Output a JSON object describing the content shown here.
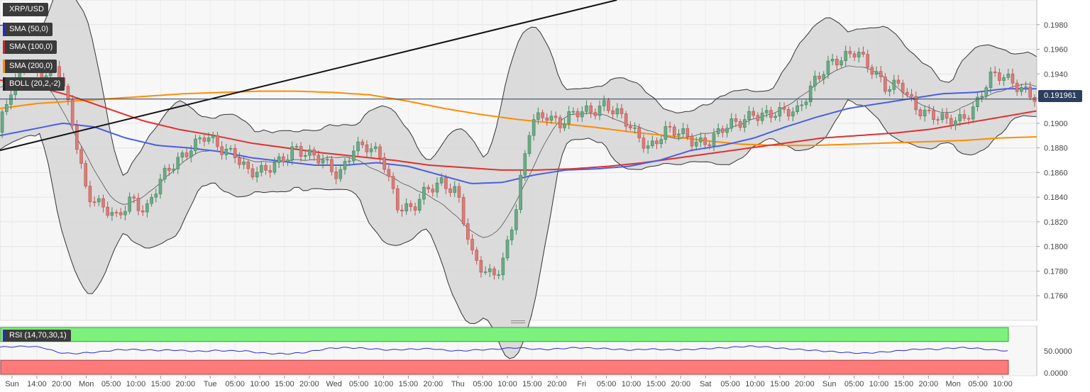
{
  "chart_data": {
    "type": "candlestick",
    "symbol": "XRP/USD",
    "last_price": "0.191961",
    "indicators": [
      {
        "label": "SMA (50,0)",
        "color": "#2a2ab8"
      },
      {
        "label": "SMA (100,0)",
        "color": "#c62828"
      },
      {
        "label": "SMA (200,0)",
        "color": "#ff8c00"
      },
      {
        "label": "BOLL (20,2,-2)",
        "color": "#222222"
      }
    ],
    "y_axis": {
      "min": 0.174,
      "max": 0.2,
      "ticks": [
        "0.1980",
        "0.1960",
        "0.1940",
        "0.1920",
        "0.1900",
        "0.1880",
        "0.1860",
        "0.1840",
        "0.1820",
        "0.1800",
        "0.1780",
        "0.1760"
      ]
    },
    "x_axis": {
      "ticks": [
        "Sun",
        "14:00",
        "20:00",
        "Mon",
        "05:00",
        "10:00",
        "15:00",
        "20:00",
        "Tue",
        "05:00",
        "10:00",
        "15:00",
        "20:00",
        "Wed",
        "05:00",
        "10:00",
        "15:00",
        "20:00",
        "Thu",
        "05:00",
        "10:00",
        "15:00",
        "20:00",
        "Fri",
        "05:00",
        "10:00",
        "15:00",
        "20:00",
        "Sat",
        "05:00",
        "10:00",
        "15:00",
        "20:00",
        "Sun",
        "05:00",
        "10:00",
        "15:00",
        "20:00",
        "Mon",
        "05:00",
        "10:00"
      ]
    },
    "price_anchors": [
      0.189,
      0.193,
      0.1955,
      0.1935,
      0.1945,
      0.1905,
      0.1845,
      0.183,
      0.1822,
      0.1842,
      0.1828,
      0.1852,
      0.187,
      0.1882,
      0.1888,
      0.1878,
      0.1878,
      0.186,
      0.1858,
      0.187,
      0.1882,
      0.1872,
      0.1868,
      0.186,
      0.188,
      0.1878,
      0.1872,
      0.1835,
      0.1828,
      0.1845,
      0.1855,
      0.1845,
      0.179,
      0.1778,
      0.1785,
      0.183,
      0.19,
      0.191,
      0.19,
      0.1906,
      0.191,
      0.1918,
      0.1905,
      0.189,
      0.1882,
      0.1895,
      0.189,
      0.1885,
      0.1888,
      0.1895,
      0.1898,
      0.191,
      0.1908,
      0.1906,
      0.191,
      0.1935,
      0.1945,
      0.195,
      0.1962,
      0.1945,
      0.1925,
      0.1932,
      0.1915,
      0.1905,
      0.19,
      0.1905,
      0.1915,
      0.1935,
      0.1938,
      0.1932,
      0.192
    ],
    "sma50_anchors": [
      0.189,
      0.1895,
      0.19,
      0.1897,
      0.1888,
      0.1882,
      0.188,
      0.1877,
      0.1872,
      0.1869,
      0.1866,
      0.1866,
      0.1868,
      0.1865,
      0.1858,
      0.1851,
      0.1852,
      0.1858,
      0.1862,
      0.1863,
      0.1865,
      0.187,
      0.1878,
      0.1882,
      0.1888,
      0.1897,
      0.1905,
      0.1912,
      0.1916,
      0.192,
      0.1924,
      0.1925,
      0.1928,
      0.1928
    ],
    "sma100_anchors": [
      0.1935,
      0.193,
      0.1922,
      0.1912,
      0.1902,
      0.1895,
      0.189,
      0.1884,
      0.188,
      0.1876,
      0.1873,
      0.187,
      0.1866,
      0.1864,
      0.1862,
      0.1862,
      0.1863,
      0.1865,
      0.1868,
      0.1872,
      0.1876,
      0.188,
      0.1884,
      0.1888,
      0.189,
      0.1892,
      0.1895,
      0.19,
      0.1905,
      0.191
    ],
    "sma200_anchors": [
      0.1912,
      0.1916,
      0.1918,
      0.192,
      0.1922,
      0.1924,
      0.1925,
      0.1926,
      0.1926,
      0.1925,
      0.1923,
      0.1918,
      0.1912,
      0.1907,
      0.1903,
      0.19,
      0.1897,
      0.1893,
      0.189,
      0.1886,
      0.1883,
      0.1882,
      0.1882,
      0.1883,
      0.1884,
      0.1885,
      0.1886,
      0.1888,
      0.1889
    ],
    "trendline": {
      "from": [
        0.0,
        0.1878
      ],
      "to": [
        0.595,
        0.2
      ]
    },
    "rsi": {
      "label": "RSI (14,70,30,1)",
      "ticks": [
        "50.0000",
        "0.0000"
      ],
      "overbought": 70,
      "oversold": 30,
      "anchors": [
        58,
        59,
        60,
        57,
        47,
        44,
        46,
        48,
        52,
        53,
        52,
        51,
        52,
        50,
        49,
        51,
        50,
        50,
        46,
        44,
        44,
        46,
        51,
        56,
        57,
        56,
        54,
        52,
        53,
        54,
        55,
        51,
        50,
        52,
        53,
        55,
        57,
        54,
        53,
        55,
        57,
        56,
        55,
        53,
        52,
        54,
        53,
        52,
        53,
        55,
        56,
        58,
        60,
        59,
        56,
        54,
        52,
        50,
        48,
        46,
        45,
        47,
        49,
        52,
        54,
        53,
        56,
        57,
        55,
        52,
        50
      ]
    }
  }
}
